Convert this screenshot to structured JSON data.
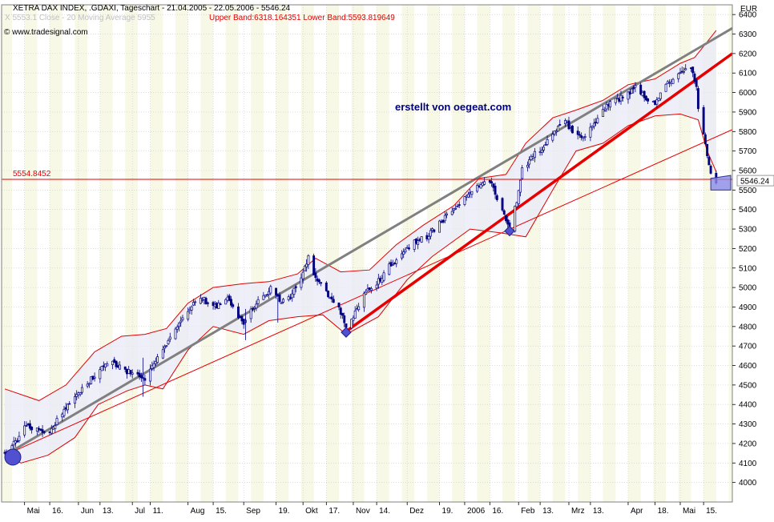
{
  "header": {
    "title": "XETRA DAX INDEX, .GDAXI, Tageschart - 21.04.2005 - 22.05.2006 - 5546.24",
    "indicator": "X  5553.1 Close - 20 Moving Average 5955",
    "bands": "Upper Band:6318.164351 Lower Band:5593.819649",
    "source": "© www.tradesignal.com",
    "author": "erstellt von oegeat.com"
  },
  "colors": {
    "bg": "#ffffff",
    "stripe": "#f7f8e6",
    "grid": "#c9c9c9",
    "candle": "#000080",
    "bb": "#e00000",
    "bbfill": "#e9e9f8",
    "redline": "#e60000",
    "grayline": "#808080",
    "marker": "#5050d0",
    "axis_bg": "#f0f0f0"
  },
  "chart_data": {
    "type": "candlestick",
    "title": "XETRA DAX INDEX, .GDAXI, Tageschart - 21.04.2005 - 22.05.2006 - 5546.24",
    "unit": "EUR",
    "last_price": "5546.24",
    "reference_level": {
      "label": "5554.8452",
      "value": 5554.8452
    },
    "upper_band": 6318.164351,
    "lower_band": 5593.819649,
    "ylim": [
      3900,
      6450
    ],
    "y_ticks": [
      4000,
      4100,
      4200,
      4300,
      4400,
      4500,
      4600,
      4700,
      4800,
      4900,
      5000,
      5100,
      5200,
      5300,
      5400,
      5500,
      5600,
      5700,
      5800,
      5900,
      6000,
      6100,
      6200,
      6300,
      6400
    ],
    "x_range": [
      "2005-04-21",
      "2006-05-31"
    ],
    "x_ticks": [
      {
        "date": "2005-05-02",
        "label": "Mai"
      },
      {
        "date": "2005-05-16",
        "label": "16."
      },
      {
        "date": "2005-06-01",
        "label": "Jun"
      },
      {
        "date": "2005-06-13",
        "label": "13."
      },
      {
        "date": "2005-07-01",
        "label": "Jul"
      },
      {
        "date": "2005-07-11",
        "label": "11."
      },
      {
        "date": "2005-08-01",
        "label": "Aug"
      },
      {
        "date": "2005-08-15",
        "label": "15."
      },
      {
        "date": "2005-09-01",
        "label": "Sep"
      },
      {
        "date": "2005-09-19",
        "label": "19."
      },
      {
        "date": "2005-10-04",
        "label": "Okt"
      },
      {
        "date": "2005-10-17",
        "label": "17."
      },
      {
        "date": "2005-11-01",
        "label": "Nov"
      },
      {
        "date": "2005-11-14",
        "label": "14."
      },
      {
        "date": "2005-12-01",
        "label": "Dez"
      },
      {
        "date": "2005-12-19",
        "label": "19."
      },
      {
        "date": "2006-01-02",
        "label": "2006"
      },
      {
        "date": "2006-01-16",
        "label": "16."
      },
      {
        "date": "2006-02-01",
        "label": "Feb"
      },
      {
        "date": "2006-02-13",
        "label": "13."
      },
      {
        "date": "2006-03-01",
        "label": "Mrz"
      },
      {
        "date": "2006-03-13",
        "label": "13."
      },
      {
        "date": "2006-04-03",
        "label": "Apr"
      },
      {
        "date": "2006-04-18",
        "label": "18."
      },
      {
        "date": "2006-05-02",
        "label": "Mai"
      },
      {
        "date": "2006-05-15",
        "label": "15."
      }
    ],
    "close_path": [
      [
        "2005-04-21",
        4160
      ],
      [
        "2005-04-28",
        4220
      ],
      [
        "2005-05-03",
        4300
      ],
      [
        "2005-05-10",
        4260
      ],
      [
        "2005-05-17",
        4270
      ],
      [
        "2005-05-24",
        4380
      ],
      [
        "2005-05-31",
        4450
      ],
      [
        "2005-06-07",
        4520
      ],
      [
        "2005-06-14",
        4600
      ],
      [
        "2005-06-21",
        4610
      ],
      [
        "2005-06-28",
        4570
      ],
      [
        "2005-07-04",
        4550
      ],
      [
        "2005-07-08",
        4530
      ],
      [
        "2005-07-13",
        4620
      ],
      [
        "2005-07-19",
        4700
      ],
      [
        "2005-07-26",
        4800
      ],
      [
        "2005-08-03",
        4900
      ],
      [
        "2005-08-08",
        4950
      ],
      [
        "2005-08-12",
        4920
      ],
      [
        "2005-08-17",
        4900
      ],
      [
        "2005-08-23",
        4950
      ],
      [
        "2005-08-29",
        4850
      ],
      [
        "2005-09-01",
        4800
      ],
      [
        "2005-09-06",
        4900
      ],
      [
        "2005-09-12",
        4950
      ],
      [
        "2005-09-16",
        5000
      ],
      [
        "2005-09-22",
        4930
      ],
      [
        "2005-09-27",
        4950
      ],
      [
        "2005-10-03",
        5050
      ],
      [
        "2005-10-07",
        5150
      ],
      [
        "2005-10-11",
        5050
      ],
      [
        "2005-10-17",
        4970
      ],
      [
        "2005-10-24",
        4900
      ],
      [
        "2005-10-28",
        4790
      ],
      [
        "2005-11-01",
        4850
      ],
      [
        "2005-11-07",
        4980
      ],
      [
        "2005-11-14",
        5020
      ],
      [
        "2005-11-21",
        5110
      ],
      [
        "2005-11-28",
        5170
      ],
      [
        "2005-12-05",
        5230
      ],
      [
        "2005-12-12",
        5260
      ],
      [
        "2005-12-19",
        5330
      ],
      [
        "2005-12-27",
        5400
      ],
      [
        "2006-01-04",
        5480
      ],
      [
        "2006-01-10",
        5520
      ],
      [
        "2006-01-16",
        5550
      ],
      [
        "2006-01-20",
        5460
      ],
      [
        "2006-01-24",
        5380
      ],
      [
        "2006-01-27",
        5300
      ],
      [
        "2006-01-31",
        5450
      ],
      [
        "2006-02-03",
        5600
      ],
      [
        "2006-02-09",
        5680
      ],
      [
        "2006-02-15",
        5720
      ],
      [
        "2006-02-21",
        5800
      ],
      [
        "2006-02-27",
        5850
      ],
      [
        "2006-03-03",
        5790
      ],
      [
        "2006-03-09",
        5760
      ],
      [
        "2006-03-15",
        5850
      ],
      [
        "2006-03-21",
        5920
      ],
      [
        "2006-03-27",
        5960
      ],
      [
        "2006-04-03",
        5990
      ],
      [
        "2006-04-07",
        6030
      ],
      [
        "2006-04-12",
        5980
      ],
      [
        "2006-04-18",
        5950
      ],
      [
        "2006-04-24",
        6030
      ],
      [
        "2006-04-28",
        6080
      ],
      [
        "2006-05-03",
        6100
      ],
      [
        "2006-05-08",
        6120
      ],
      [
        "2006-05-11",
        6040
      ],
      [
        "2006-05-12",
        5920
      ],
      [
        "2006-05-15",
        5780
      ],
      [
        "2006-05-17",
        5680
      ],
      [
        "2006-05-19",
        5600
      ],
      [
        "2006-05-22",
        5546
      ]
    ],
    "upper_band_path": [
      [
        "2005-04-21",
        4480
      ],
      [
        "2005-05-10",
        4420
      ],
      [
        "2005-05-25",
        4500
      ],
      [
        "2005-06-10",
        4670
      ],
      [
        "2005-06-25",
        4750
      ],
      [
        "2005-07-08",
        4760
      ],
      [
        "2005-07-20",
        4790
      ],
      [
        "2005-08-01",
        4920
      ],
      [
        "2005-08-15",
        5000
      ],
      [
        "2005-09-01",
        5020
      ],
      [
        "2005-09-15",
        5030
      ],
      [
        "2005-10-01",
        5070
      ],
      [
        "2005-10-11",
        5150
      ],
      [
        "2005-10-25",
        5080
      ],
      [
        "2005-11-10",
        5090
      ],
      [
        "2005-11-25",
        5220
      ],
      [
        "2005-12-10",
        5320
      ],
      [
        "2005-12-27",
        5420
      ],
      [
        "2006-01-10",
        5560
      ],
      [
        "2006-01-25",
        5580
      ],
      [
        "2006-02-05",
        5740
      ],
      [
        "2006-02-20",
        5870
      ],
      [
        "2006-03-05",
        5910
      ],
      [
        "2006-03-20",
        5960
      ],
      [
        "2006-04-03",
        6040
      ],
      [
        "2006-04-18",
        6070
      ],
      [
        "2006-05-02",
        6150
      ],
      [
        "2006-05-10",
        6180
      ],
      [
        "2006-05-17",
        6260
      ],
      [
        "2006-05-22",
        6318
      ]
    ],
    "lower_band_path": [
      [
        "2005-04-21",
        4140
      ],
      [
        "2005-04-30",
        4100
      ],
      [
        "2005-05-15",
        4140
      ],
      [
        "2005-05-30",
        4230
      ],
      [
        "2005-06-12",
        4400
      ],
      [
        "2005-06-28",
        4470
      ],
      [
        "2005-07-08",
        4500
      ],
      [
        "2005-07-18",
        4480
      ],
      [
        "2005-08-01",
        4680
      ],
      [
        "2005-08-15",
        4800
      ],
      [
        "2005-09-01",
        4760
      ],
      [
        "2005-09-15",
        4830
      ],
      [
        "2005-10-01",
        4850
      ],
      [
        "2005-10-15",
        4860
      ],
      [
        "2005-10-28",
        4760
      ],
      [
        "2005-11-15",
        4850
      ],
      [
        "2005-12-01",
        5040
      ],
      [
        "2005-12-15",
        5160
      ],
      [
        "2006-01-05",
        5300
      ],
      [
        "2006-01-22",
        5280
      ],
      [
        "2006-02-05",
        5260
      ],
      [
        "2006-02-20",
        5500
      ],
      [
        "2006-03-05",
        5700
      ],
      [
        "2006-03-20",
        5740
      ],
      [
        "2006-04-03",
        5830
      ],
      [
        "2006-04-18",
        5880
      ],
      [
        "2006-05-02",
        5890
      ],
      [
        "2006-05-12",
        5860
      ],
      [
        "2006-05-17",
        5700
      ],
      [
        "2006-05-22",
        5594
      ]
    ],
    "trendlines": [
      {
        "color": "gray",
        "width": 3,
        "from": [
          "2005-04-21",
          4140
        ],
        "to": [
          "2006-05-31",
          6330
        ]
      },
      {
        "color": "red",
        "width": 3.5,
        "from": [
          "2005-10-28",
          4775
        ],
        "to": [
          "2006-05-31",
          6200
        ]
      },
      {
        "color": "red",
        "width": 1,
        "from": [
          "2005-04-21",
          4140
        ],
        "to": [
          "2006-05-31",
          5810
        ]
      }
    ],
    "markers": [
      {
        "date": "2005-04-21",
        "value": 4130,
        "shape": "circle"
      },
      {
        "date": "2005-10-28",
        "value": 4770,
        "shape": "diamond"
      },
      {
        "date": "2006-01-27",
        "value": 5290,
        "shape": "diamond"
      }
    ]
  }
}
